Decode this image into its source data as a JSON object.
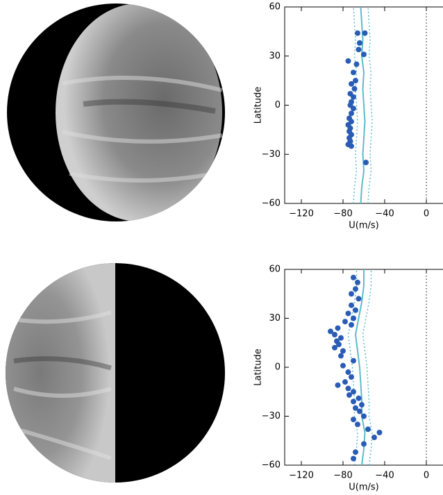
{
  "chart_data": [
    {
      "type": "scatter",
      "xlabel": "U(m/s)",
      "ylabel": "Latitude",
      "xlim": [
        -136,
        16
      ],
      "ylim": [
        -60,
        60
      ],
      "xticks": [
        {
          "value": -120,
          "label": "−120"
        },
        {
          "value": -80,
          "label": "−80"
        },
        {
          "value": -40,
          "label": "−40"
        },
        0
      ],
      "yticks": [
        {
          "value": -60,
          "label": "−60"
        },
        {
          "value": -30,
          "label": "−30"
        },
        0,
        30,
        60
      ],
      "vline": 0,
      "series": [
        {
          "type": "scatter",
          "color": "#2b5cb5",
          "x": [
            -59,
            -66,
            -64,
            -65,
            -60,
            -75,
            -67,
            -70,
            -68,
            -72,
            -69,
            -73,
            -70,
            -72,
            -73,
            -70,
            -72,
            -74,
            -72,
            -75,
            -73,
            -74,
            -72,
            -74,
            -73,
            -75,
            -72,
            -58
          ],
          "y": [
            44,
            44,
            38,
            34,
            31,
            27,
            25,
            20,
            15,
            13,
            10,
            7,
            5,
            2,
            0,
            -2,
            -5,
            -8,
            -10,
            -12,
            -14,
            -16,
            -18,
            -20,
            -22,
            -24,
            -25,
            -35
          ]
        },
        {
          "type": "line",
          "style": "solid",
          "color": "#5bbccc",
          "x": [
            -63,
            -62,
            -60,
            -61,
            -60,
            -59,
            -60,
            -61,
            -60,
            -62,
            -61,
            -62,
            -63
          ],
          "y": [
            -60,
            -50,
            -40,
            -30,
            -20,
            -10,
            0,
            10,
            20,
            30,
            40,
            50,
            60
          ]
        },
        {
          "type": "line",
          "style": "dotted",
          "color": "#5bbccc",
          "x": [
            -70,
            -69,
            -67,
            -68,
            -67,
            -66,
            -67,
            -68,
            -67,
            -69,
            -68,
            -69,
            -70
          ],
          "y": [
            -60,
            -50,
            -40,
            -30,
            -20,
            -10,
            0,
            10,
            20,
            30,
            40,
            50,
            60
          ]
        },
        {
          "type": "line",
          "style": "dotted",
          "color": "#5bbccc",
          "x": [
            -56,
            -55,
            -53,
            -54,
            -53,
            -52,
            -53,
            -54,
            -53,
            -55,
            -54,
            -55,
            -56
          ],
          "y": [
            -60,
            -50,
            -40,
            -30,
            -20,
            -10,
            0,
            10,
            20,
            30,
            40,
            50,
            60
          ]
        }
      ]
    },
    {
      "type": "scatter",
      "xlabel": "U(m/s)",
      "ylabel": "Latitude",
      "xlim": [
        -136,
        16
      ],
      "ylim": [
        -60,
        60
      ],
      "xticks": [
        {
          "value": -120,
          "label": "−120"
        },
        {
          "value": -80,
          "label": "−80"
        },
        {
          "value": -40,
          "label": "−40"
        },
        0
      ],
      "yticks": [
        {
          "value": -60,
          "label": "−60"
        },
        {
          "value": -30,
          "label": "−30"
        },
        0,
        30,
        60
      ],
      "vline": 0,
      "series": [
        {
          "type": "scatter",
          "color": "#2b5cb5",
          "x": [
            -70,
            -66,
            -68,
            -72,
            -65,
            -72,
            -68,
            -75,
            -70,
            -78,
            -72,
            -85,
            -92,
            -88,
            -82,
            -86,
            -84,
            -88,
            -80,
            -82,
            -70,
            -80,
            -75,
            -72,
            -78,
            -85,
            -75,
            -70,
            -74,
            -65,
            -70,
            -62,
            -68,
            -64,
            -60,
            -70,
            -66,
            -56,
            -45,
            -50,
            -60,
            -68,
            -70
          ],
          "y": [
            55,
            52,
            48,
            45,
            42,
            38,
            35,
            33,
            30,
            28,
            26,
            24,
            22,
            20,
            18,
            16,
            14,
            12,
            10,
            7,
            4,
            1,
            -3,
            -6,
            -9,
            -11,
            -13,
            -15,
            -17,
            -19,
            -21,
            -23,
            -25,
            -27,
            -30,
            -32,
            -35,
            -38,
            -40,
            -43,
            -47,
            -52,
            -56
          ]
        },
        {
          "type": "line",
          "style": "solid",
          "color": "#5bbccc",
          "x": [
            -62,
            -60,
            -59,
            -62,
            -62,
            -63,
            -64,
            -66,
            -68,
            -65,
            -62,
            -60,
            -60
          ],
          "y": [
            -60,
            -50,
            -40,
            -30,
            -20,
            -10,
            0,
            10,
            20,
            30,
            40,
            50,
            60
          ]
        },
        {
          "type": "line",
          "style": "dotted",
          "color": "#5bbccc",
          "x": [
            -69,
            -67,
            -66,
            -69,
            -69,
            -70,
            -71,
            -73,
            -75,
            -72,
            -69,
            -67,
            -67
          ],
          "y": [
            -60,
            -50,
            -40,
            -30,
            -20,
            -10,
            0,
            10,
            20,
            30,
            40,
            50,
            60
          ]
        },
        {
          "type": "line",
          "style": "dotted",
          "color": "#5bbccc",
          "x": [
            -55,
            -53,
            -52,
            -55,
            -55,
            -56,
            -57,
            -59,
            -61,
            -58,
            -55,
            -53,
            -53
          ],
          "y": [
            -60,
            -50,
            -40,
            -30,
            -20,
            -10,
            0,
            10,
            20,
            30,
            40,
            50,
            60
          ]
        }
      ]
    }
  ]
}
